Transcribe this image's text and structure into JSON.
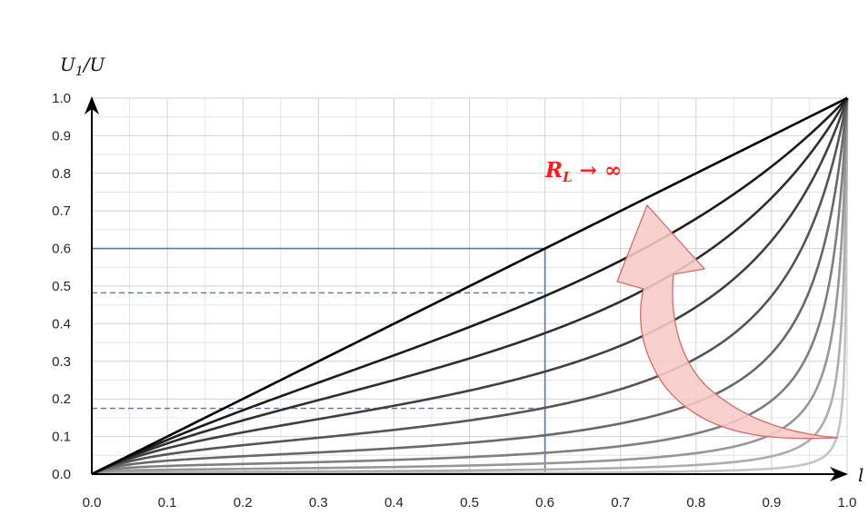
{
  "chart_data": {
    "type": "line",
    "title": "",
    "xlabel": "l",
    "ylabel": "U1/U",
    "ylabel_base": "U",
    "ylabel_sub": "1",
    "ylabel_tail": "/U",
    "xlim": [
      0,
      1
    ],
    "ylim": [
      0,
      1
    ],
    "x_ticks": [
      "0.0",
      "0.1",
      "0.2",
      "0.3",
      "0.4",
      "0.5",
      "0.6",
      "0.7",
      "0.8",
      "0.9",
      "1.0"
    ],
    "y_ticks": [
      "0.0",
      "0.1",
      "0.2",
      "0.3",
      "0.4",
      "0.5",
      "0.6",
      "0.7",
      "0.8",
      "0.9",
      "1.0"
    ],
    "grid": true,
    "series_formula": "y = x*k / (k + x*(1 - x))",
    "series": [
      {
        "k": 1000,
        "color": "#000000"
      },
      {
        "k": 0.9,
        "color": "#1c1c1c"
      },
      {
        "k": 0.4,
        "color": "#2e2e2e"
      },
      {
        "k": 0.2,
        "color": "#404040"
      },
      {
        "k": 0.1,
        "color": "#555555"
      },
      {
        "k": 0.05,
        "color": "#686868"
      },
      {
        "k": 0.025,
        "color": "#7e7e7e"
      },
      {
        "k": 0.012,
        "color": "#969696"
      },
      {
        "k": 0.005,
        "color": "#adadad"
      },
      {
        "k": 0.0015,
        "color": "#c4c4c4"
      }
    ],
    "guide_lines": {
      "x": 0.6,
      "solid_y": 0.6,
      "dashed_y": [
        0.482,
        0.175
      ],
      "color": "#5878a8"
    },
    "annotation": {
      "label_base": "R",
      "label_sub": "L",
      "label_rest": " → ∞",
      "color": "#ff1a1a"
    },
    "arrow_fill": "#f7c9c6",
    "arrow_stroke": "#d96a66"
  }
}
